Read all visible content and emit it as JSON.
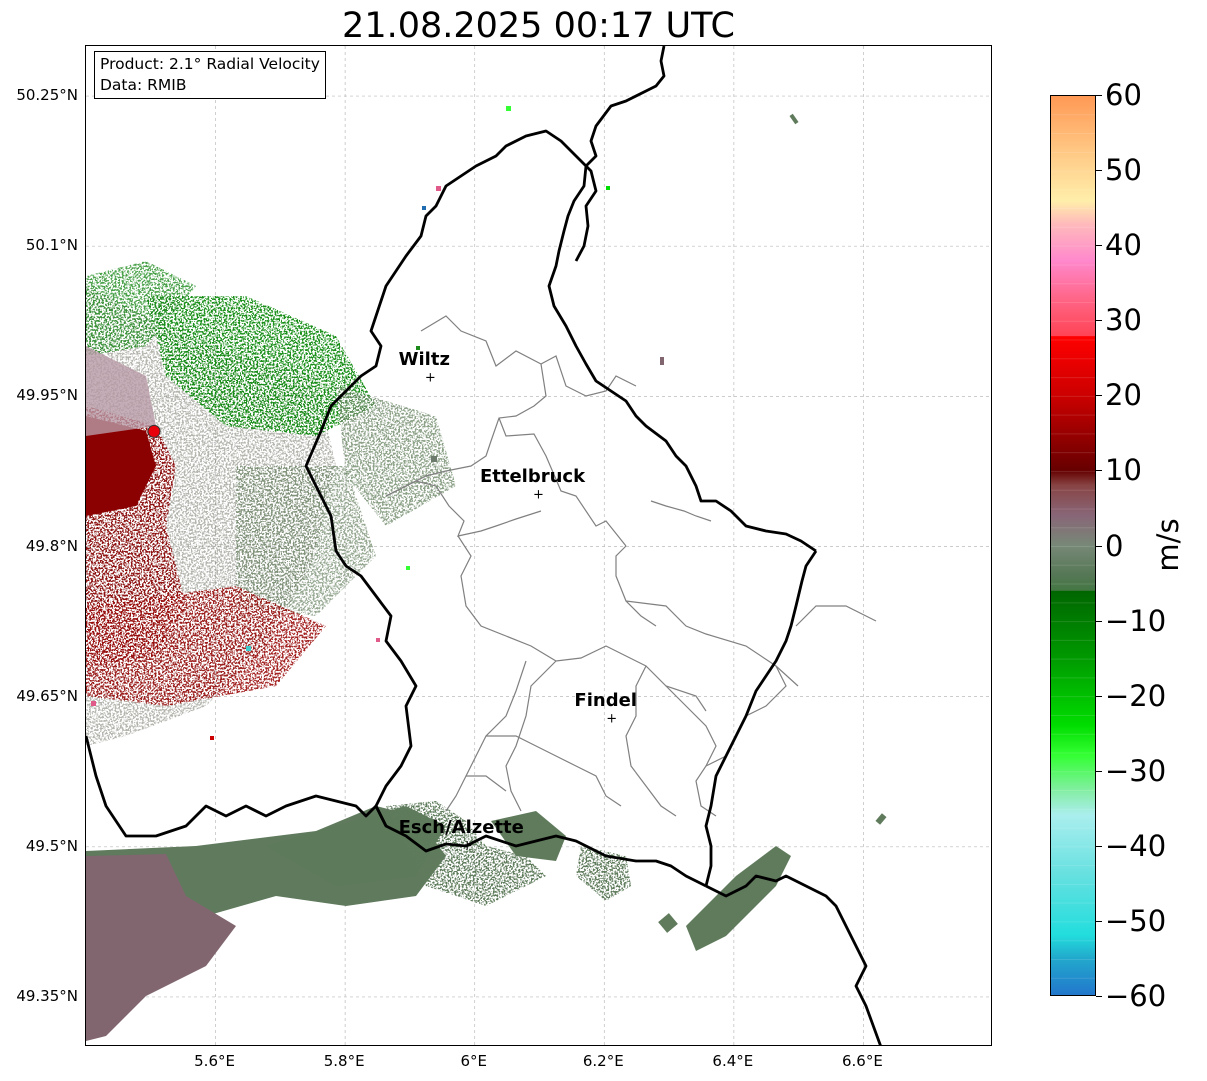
{
  "title": "21.08.2025 00:17 UTC",
  "info_box": {
    "product": "Product: 2.1° Radial Velocity",
    "data": "Data: RMIB"
  },
  "map": {
    "lon_range": [
      5.4,
      6.8
    ],
    "lat_range": [
      49.3,
      50.3
    ],
    "lat_ticks": [
      {
        "value": 50.25,
        "label": "50.25°N"
      },
      {
        "value": 50.1,
        "label": "50.1°N"
      },
      {
        "value": 49.95,
        "label": "49.95°N"
      },
      {
        "value": 49.8,
        "label": "49.8°N"
      },
      {
        "value": 49.65,
        "label": "49.65°N"
      },
      {
        "value": 49.5,
        "label": "49.5°N"
      },
      {
        "value": 49.35,
        "label": "49.35°N"
      }
    ],
    "lon_ticks": [
      {
        "value": 5.6,
        "label": "5.6°E"
      },
      {
        "value": 5.8,
        "label": "5.8°E"
      },
      {
        "value": 6.0,
        "label": "6°E"
      },
      {
        "value": 6.2,
        "label": "6.2°E"
      },
      {
        "value": 6.4,
        "label": "6.4°E"
      },
      {
        "value": 6.6,
        "label": "6.6°E"
      }
    ],
    "grid": true,
    "radar_site": {
      "lon": 5.505,
      "lat": 49.915,
      "color": "#e8000b"
    },
    "cities": [
      {
        "name": "Wiltz",
        "lon": 5.933,
        "lat": 49.967
      },
      {
        "name": "Ettelbruck",
        "lon": 6.1,
        "lat": 49.85
      },
      {
        "name": "Findel",
        "lon": 6.213,
        "lat": 49.627
      },
      {
        "name": "Esch/Alzette",
        "lon": 5.99,
        "lat": 49.5
      }
    ]
  },
  "colorbar": {
    "label": "m/s",
    "range": [
      -60,
      60
    ],
    "ticks": [
      {
        "value": 60,
        "label": "60"
      },
      {
        "value": 50,
        "label": "50"
      },
      {
        "value": 40,
        "label": "40"
      },
      {
        "value": 30,
        "label": "30"
      },
      {
        "value": 20,
        "label": "20"
      },
      {
        "value": 10,
        "label": "10"
      },
      {
        "value": 0,
        "label": "0"
      },
      {
        "value": -10,
        "label": "−10"
      },
      {
        "value": -20,
        "label": "−20"
      },
      {
        "value": -30,
        "label": "−30"
      },
      {
        "value": -40,
        "label": "−40"
      },
      {
        "value": -50,
        "label": "−50"
      },
      {
        "value": -60,
        "label": "−60"
      }
    ],
    "stops": [
      {
        "value": 60,
        "color": "#ff9955"
      },
      {
        "value": 52,
        "color": "#ffcc88"
      },
      {
        "value": 46,
        "color": "#ffeeaa"
      },
      {
        "value": 43,
        "color": "#ffbbbb"
      },
      {
        "value": 38,
        "color": "#ff88cc"
      },
      {
        "value": 33,
        "color": "#ff6688"
      },
      {
        "value": 28,
        "color": "#ff4455"
      },
      {
        "value": 27.9,
        "color": "#ff0000"
      },
      {
        "value": 20,
        "color": "#cc0000"
      },
      {
        "value": 10,
        "color": "#660000"
      },
      {
        "value": 8,
        "color": "#884444"
      },
      {
        "value": 4,
        "color": "#886677"
      },
      {
        "value": 0,
        "color": "#778877"
      },
      {
        "value": -4,
        "color": "#557755"
      },
      {
        "value": -6,
        "color": "#447744"
      },
      {
        "value": -6.1,
        "color": "#006600"
      },
      {
        "value": -15,
        "color": "#009900"
      },
      {
        "value": -24,
        "color": "#00dd00"
      },
      {
        "value": -28,
        "color": "#33ff33"
      },
      {
        "value": -33,
        "color": "#88eeaa"
      },
      {
        "value": -36,
        "color": "#aaeeee"
      },
      {
        "value": -44,
        "color": "#66e0e0"
      },
      {
        "value": -52,
        "color": "#22dddd"
      },
      {
        "value": -55,
        "color": "#22aacc"
      },
      {
        "value": -60,
        "color": "#2277cc"
      }
    ]
  },
  "colors": {
    "velocity_positive": "#8b0000",
    "velocity_near_zero": "#7a6e72",
    "velocity_negative": "#1a8c1a",
    "border": "#000000",
    "canton_border": "#808080"
  }
}
